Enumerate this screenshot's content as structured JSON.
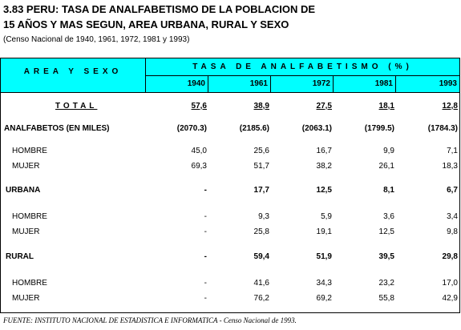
{
  "title_line1": "3.83   PERU: TASA DE ANALFABETISMO DE LA POBLACION DE",
  "title_line2": "15 AÑOS Y MAS SEGUN, AREA URBANA, RURAL Y SEXO",
  "subtitle": "(Censo Nacional de 1940, 1961, 1972, 1981 y 1993)",
  "header": {
    "area": "AREA Y SEXO",
    "tasa": "TASA  DE  ANALFABETISMO  (%)",
    "years": [
      "1940",
      "1961",
      "1972",
      "1981",
      "1993"
    ]
  },
  "rows": [
    {
      "label": "TOTAL",
      "values": [
        "57,6",
        "38,9",
        "27,5",
        "18,1",
        "12,8"
      ]
    },
    {
      "label": "ANALFABETOS (EN MILES)",
      "values": [
        "(2070.3)",
        "(2185.6)",
        "(2063.1)",
        "(1799.5)",
        "(1784.3)"
      ]
    },
    {
      "label": "HOMBRE",
      "values": [
        "45,0",
        "25,6",
        "16,7",
        "9,9",
        "7,1"
      ]
    },
    {
      "label": "MUJER",
      "values": [
        "69,3",
        "51,7",
        "38,2",
        "26,1",
        "18,3"
      ]
    },
    {
      "label": "URBANA",
      "values": [
        "-",
        "17,7",
        "12,5",
        "8,1",
        "6,7"
      ]
    },
    {
      "label": "HOMBRE",
      "values": [
        "-",
        "9,3",
        "5,9",
        "3,6",
        "3,4"
      ]
    },
    {
      "label": "MUJER",
      "values": [
        "-",
        "25,8",
        "19,1",
        "12,5",
        "9,8"
      ]
    },
    {
      "label": "RURAL",
      "values": [
        "-",
        "59,4",
        "51,9",
        "39,5",
        "29,8"
      ]
    },
    {
      "label": "HOMBRE",
      "values": [
        "-",
        "41,6",
        "34,3",
        "23,2",
        "17,0"
      ]
    },
    {
      "label": "MUJER",
      "values": [
        "-",
        "76,2",
        "69,2",
        "55,8",
        "42,9"
      ]
    }
  ],
  "footer": "FUENTE: INSTITUTO NACIONAL DE ESTADISTICA E INFORMATICA    - Censo Nacional de 1993."
}
